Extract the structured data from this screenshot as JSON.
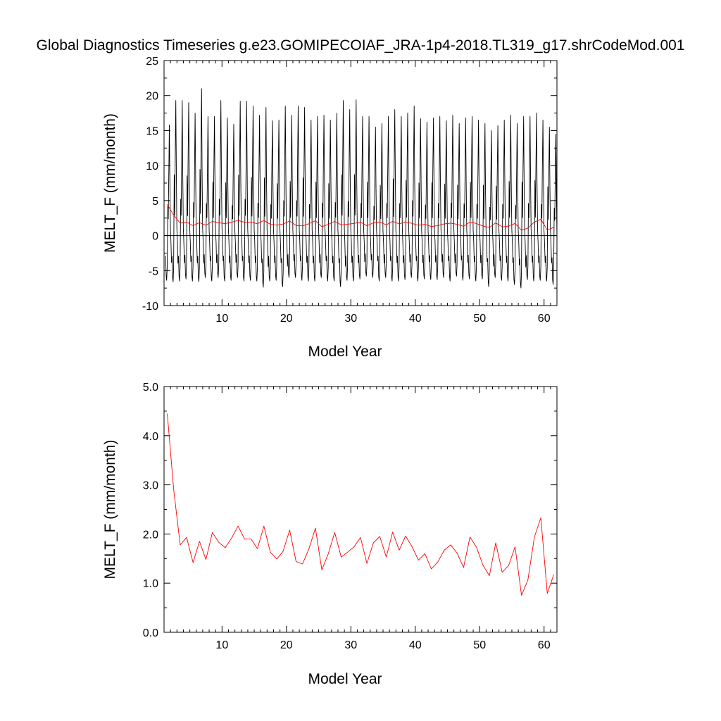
{
  "figure": {
    "title": "Global Diagnostics Timeseries g.e23.GOMIPECOIAF_JRA-1p4-2018.TL319_g17.shrCodeMod.001"
  },
  "chart_data": [
    {
      "type": "line",
      "xlabel": "Model Year",
      "ylabel": "MELT_F (mm/month)",
      "xlim": [
        1,
        62
      ],
      "ylim": [
        -10,
        25
      ],
      "xticks": [
        10,
        20,
        30,
        40,
        50,
        60
      ],
      "yticks": [
        -10,
        -5,
        0,
        5,
        10,
        15,
        20,
        25
      ],
      "reference_line_y": 0,
      "grid": false,
      "series": [
        {
          "color": "#000000",
          "monthly_peaks": [
            15.8,
            19.3,
            19.3,
            19.0,
            17.5,
            21.0,
            17.0,
            17.0,
            19.3,
            16.8,
            15.9,
            19.2,
            19.2,
            18.5,
            17.2,
            18.3,
            16.4,
            16.5,
            18.5,
            17.2,
            18.5,
            18.3,
            16.5,
            17.0,
            17.2,
            16.5,
            17.5,
            19.3,
            18.0,
            19.4,
            17.0,
            17.0,
            15.5,
            16.0,
            17.0,
            18.0,
            17.0,
            17.5,
            18.5,
            16.7,
            16.2,
            16.8,
            17.0,
            16.4,
            17.2,
            16.0,
            16.8,
            17.0,
            16.5,
            16.0,
            15.0,
            15.7,
            16.5,
            17.2,
            16.0,
            17.0,
            17.0,
            17.5,
            16.5,
            15.5,
            14.5
          ],
          "monthly_troughs": [
            -6.4,
            -6.6,
            -6.5,
            -6.2,
            -6.5,
            -6.6,
            -6.0,
            -6.5,
            -6.0,
            -6.5,
            -6.4,
            -6.0,
            -6.5,
            -6.4,
            -6.5,
            -7.4,
            -6.5,
            -6.4,
            -7.3,
            -6.0,
            -6.0,
            -6.4,
            -6.5,
            -6.5,
            -6.0,
            -6.5,
            -6.5,
            -7.3,
            -6.4,
            -6.5,
            -6.2,
            -5.8,
            -6.0,
            -6.5,
            -6.0,
            -6.5,
            -6.5,
            -6.3,
            -6.0,
            -6.5,
            -6.2,
            -6.3,
            -6.3,
            -6.0,
            -6.5,
            -5.8,
            -6.4,
            -6.2,
            -6.5,
            -6.2,
            -7.3,
            -6.0,
            -6.4,
            -6.5,
            -7.0,
            -7.5,
            -6.3,
            -6.5,
            -6.4,
            -6.5,
            -7.0
          ]
        },
        {
          "color": "#ff0000",
          "x": [
            1.5,
            2.5,
            3.5,
            4.5,
            5.5,
            6.5,
            7.5,
            8.5,
            9.5,
            10.5,
            11.5,
            12.5,
            13.5,
            14.5,
            15.5,
            16.5,
            17.5,
            18.5,
            19.5,
            20.5,
            21.5,
            22.5,
            23.5,
            24.5,
            25.5,
            26.5,
            27.5,
            28.5,
            29.5,
            30.5,
            31.5,
            32.5,
            33.5,
            34.5,
            35.5,
            36.5,
            37.5,
            38.5,
            39.5,
            40.5,
            41.5,
            42.5,
            43.5,
            44.5,
            45.5,
            46.5,
            47.5,
            48.5,
            49.5,
            50.5,
            51.5,
            52.5,
            53.5,
            54.5,
            55.5,
            56.5,
            57.5,
            58.5,
            59.5,
            60.5,
            61.5
          ],
          "y": [
            4.45,
            2.9,
            1.78,
            1.93,
            1.42,
            1.85,
            1.48,
            2.03,
            1.83,
            1.72,
            1.92,
            2.16,
            1.9,
            1.9,
            1.7,
            2.16,
            1.63,
            1.49,
            1.65,
            2.08,
            1.44,
            1.39,
            1.7,
            2.12,
            1.27,
            1.6,
            2.03,
            1.53,
            1.63,
            1.74,
            1.93,
            1.4,
            1.82,
            1.95,
            1.53,
            2.04,
            1.67,
            1.96,
            1.74,
            1.47,
            1.6,
            1.29,
            1.43,
            1.67,
            1.78,
            1.61,
            1.32,
            1.94,
            1.73,
            1.37,
            1.15,
            1.82,
            1.22,
            1.36,
            1.74,
            0.75,
            1.07,
            1.94,
            2.33,
            0.79,
            1.17
          ]
        }
      ]
    },
    {
      "type": "line",
      "xlabel": "Model Year",
      "ylabel": "MELT_F (mm/month)",
      "xlim": [
        1,
        62
      ],
      "ylim": [
        0,
        5
      ],
      "xticks": [
        10,
        20,
        30,
        40,
        50,
        60
      ],
      "yticks": [
        0,
        1,
        2,
        3,
        4,
        5
      ],
      "yticklabels": [
        "0.0",
        "1.0",
        "2.0",
        "3.0",
        "4.0",
        "5.0"
      ],
      "grid": false,
      "series": [
        {
          "color": "#ff0000",
          "x": [
            1.5,
            2.5,
            3.5,
            4.5,
            5.5,
            6.5,
            7.5,
            8.5,
            9.5,
            10.5,
            11.5,
            12.5,
            13.5,
            14.5,
            15.5,
            16.5,
            17.5,
            18.5,
            19.5,
            20.5,
            21.5,
            22.5,
            23.5,
            24.5,
            25.5,
            26.5,
            27.5,
            28.5,
            29.5,
            30.5,
            31.5,
            32.5,
            33.5,
            34.5,
            35.5,
            36.5,
            37.5,
            38.5,
            39.5,
            40.5,
            41.5,
            42.5,
            43.5,
            44.5,
            45.5,
            46.5,
            47.5,
            48.5,
            49.5,
            50.5,
            51.5,
            52.5,
            53.5,
            54.5,
            55.5,
            56.5,
            57.5,
            58.5,
            59.5,
            60.5,
            61.5
          ],
          "y": [
            4.45,
            2.9,
            1.78,
            1.93,
            1.42,
            1.85,
            1.48,
            2.03,
            1.83,
            1.72,
            1.92,
            2.16,
            1.9,
            1.9,
            1.7,
            2.16,
            1.63,
            1.49,
            1.65,
            2.08,
            1.44,
            1.39,
            1.7,
            2.12,
            1.27,
            1.6,
            2.03,
            1.53,
            1.63,
            1.74,
            1.93,
            1.4,
            1.82,
            1.95,
            1.53,
            2.04,
            1.67,
            1.96,
            1.74,
            1.47,
            1.6,
            1.29,
            1.43,
            1.67,
            1.78,
            1.61,
            1.32,
            1.94,
            1.73,
            1.37,
            1.15,
            1.82,
            1.22,
            1.36,
            1.74,
            0.75,
            1.07,
            1.94,
            2.33,
            0.79,
            1.17
          ]
        }
      ]
    }
  ]
}
